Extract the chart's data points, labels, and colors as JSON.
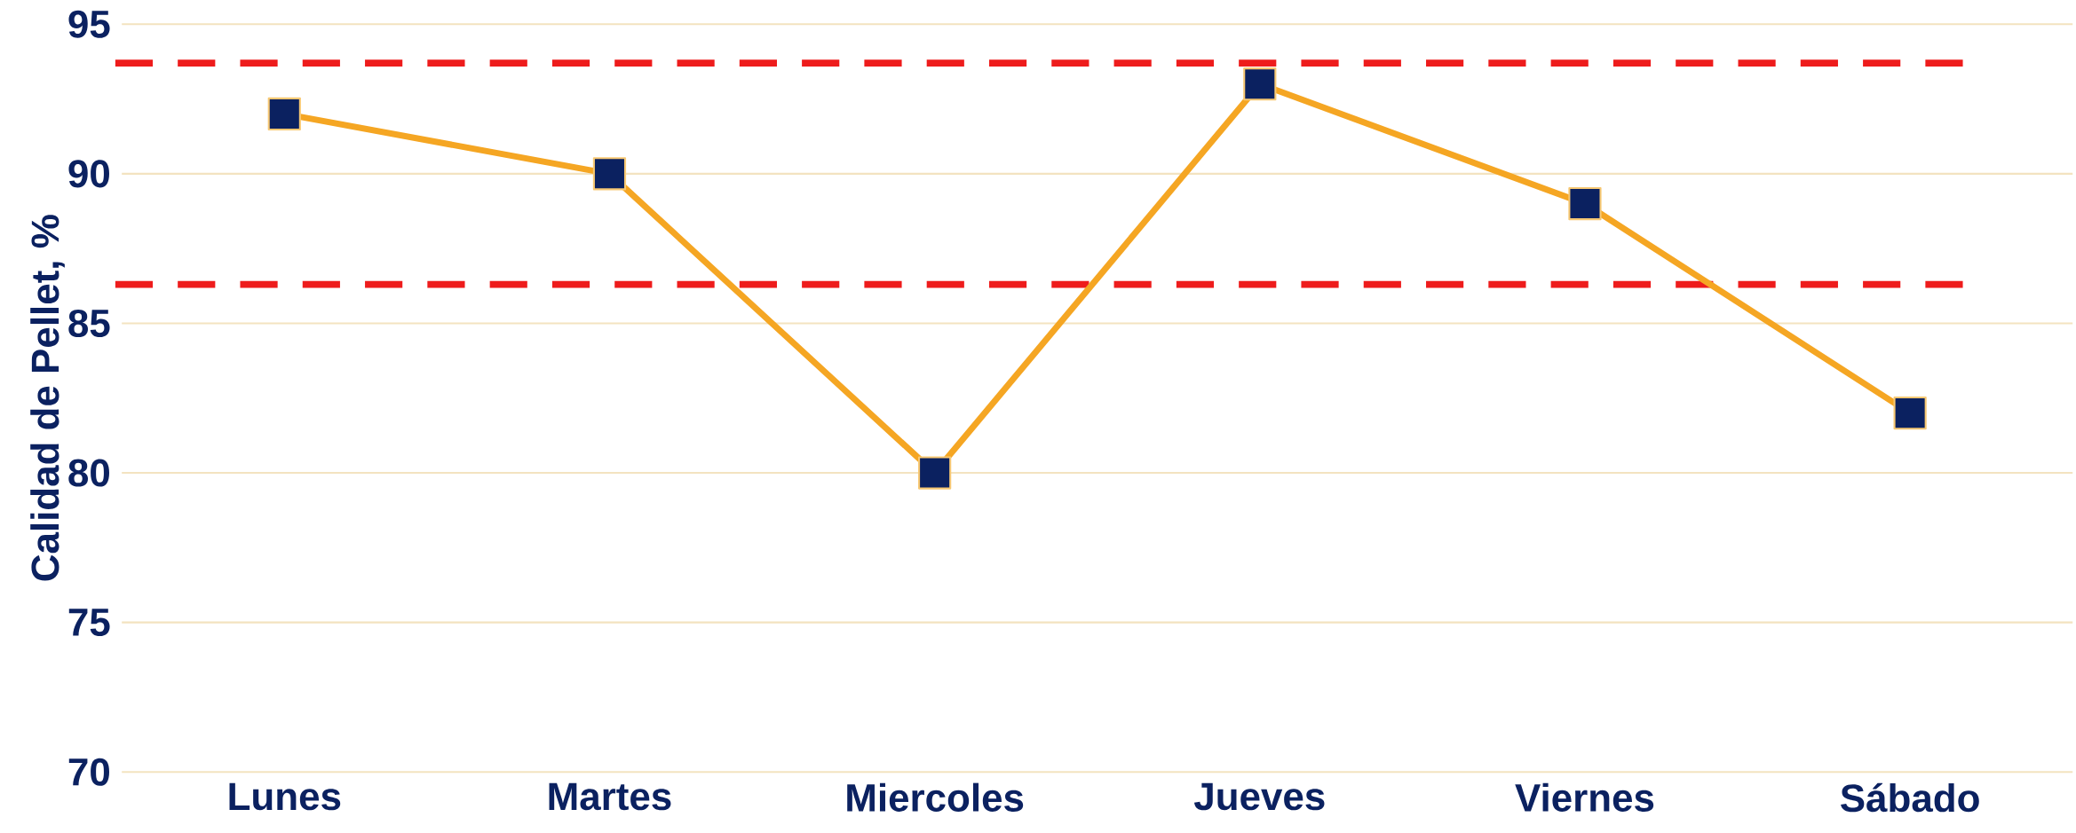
{
  "chart_data": {
    "type": "line",
    "ylabel": "Calidad de Pellet, %",
    "categories": [
      "Lunes",
      "Martes",
      "Miercoles",
      "Jueves",
      "Viernes",
      "Sábado"
    ],
    "series": [
      {
        "color": "#f5a623",
        "values": [
          92,
          90,
          80,
          93,
          89,
          82
        ]
      }
    ],
    "ylim": [
      70,
      95
    ],
    "yticks": [
      70,
      75,
      80,
      85,
      90,
      95
    ],
    "grid": "y",
    "marker": "square",
    "line_style": "solid",
    "ref_lines": [
      {
        "axis": "y",
        "value": 93.7,
        "color": "#ee1c1c",
        "line_style": "dashed"
      },
      {
        "axis": "y",
        "value": 86.3,
        "color": "#ee1c1c",
        "line_style": "dashed"
      }
    ]
  }
}
